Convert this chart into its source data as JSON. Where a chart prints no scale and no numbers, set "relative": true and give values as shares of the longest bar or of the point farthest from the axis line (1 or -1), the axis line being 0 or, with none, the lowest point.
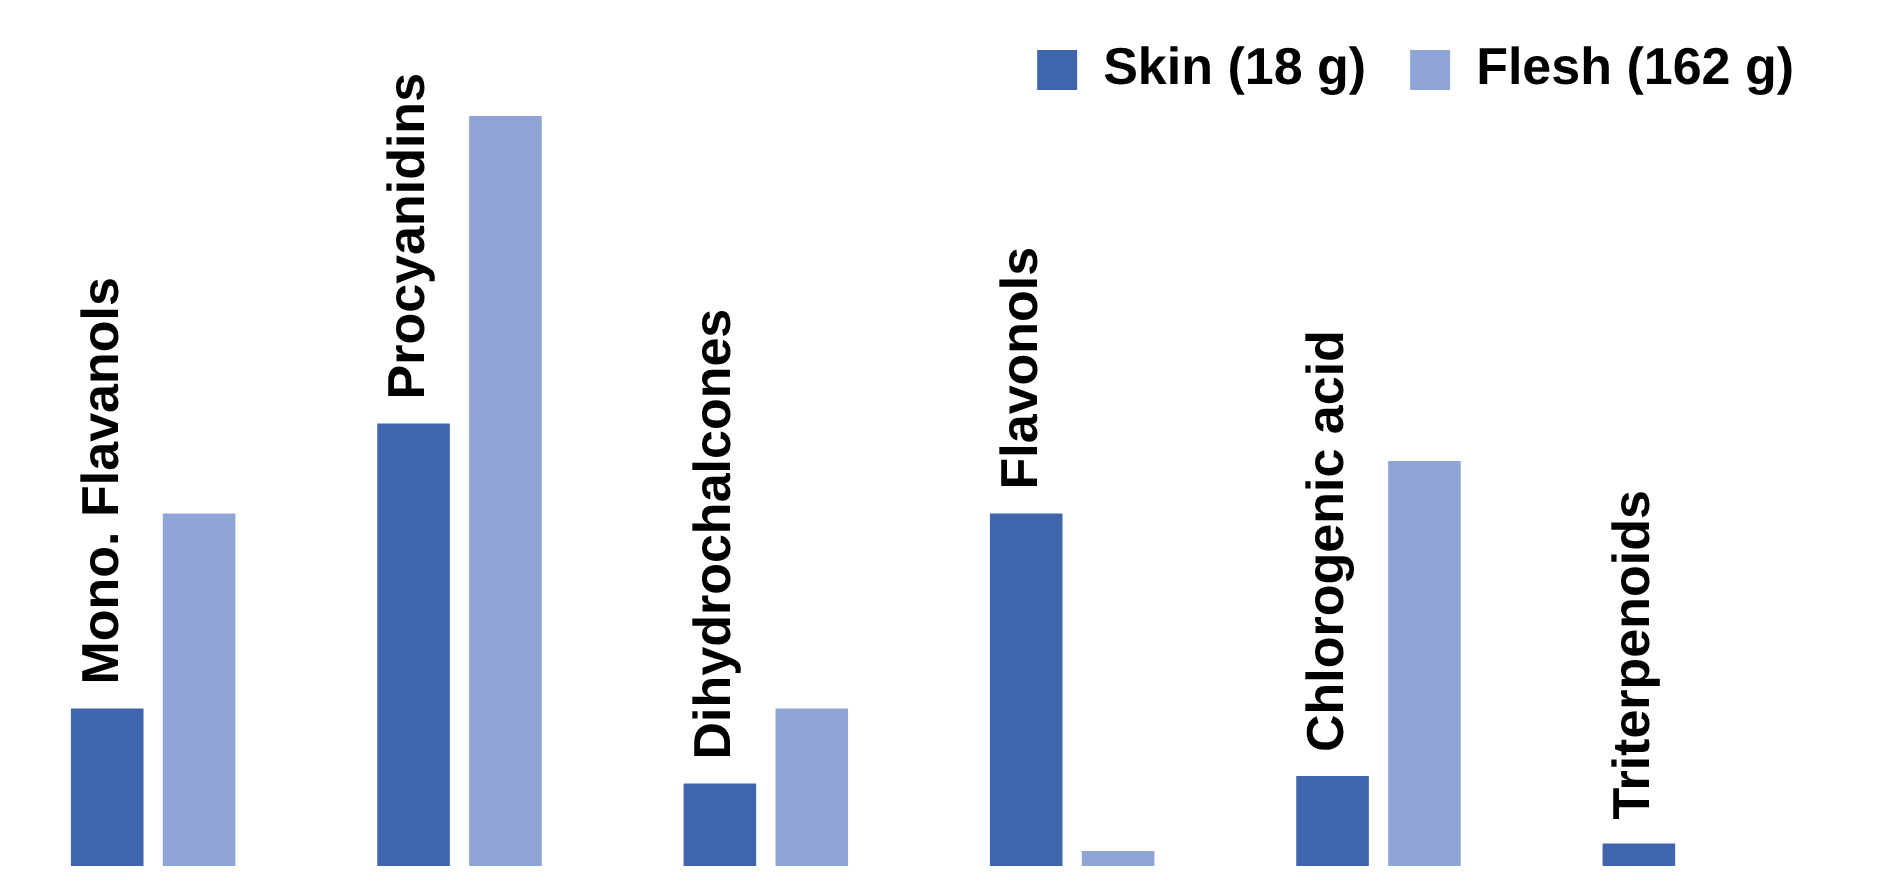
{
  "chart_data": {
    "type": "bar",
    "relative": true,
    "legend": "top right",
    "categories": [
      "Mono. Flavanols",
      "Procyanidins",
      "Dihydrochalcones",
      "Flavonols",
      "Chlorogenic acid",
      "Triterpenoids"
    ],
    "series": [
      {
        "name": "Skin (18 g)",
        "color": "#3f65ad",
        "values": [
          0.21,
          0.59,
          0.11,
          0.47,
          0.12,
          0.03
        ]
      },
      {
        "name": "Flesh (162 g)",
        "color": "#8fa5d6",
        "values": [
          0.47,
          1,
          0.21,
          0.02,
          0.54,
          null
        ]
      }
    ]
  }
}
